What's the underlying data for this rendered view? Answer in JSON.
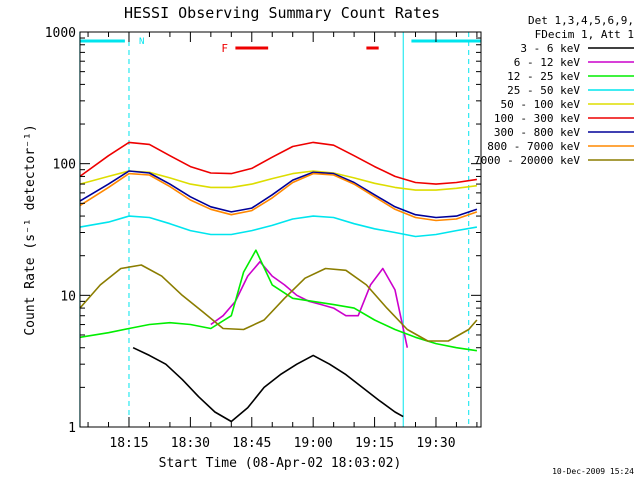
{
  "chart_data": {
    "type": "line",
    "title": "HESSI Observing Summary Count Rates",
    "xlabel": "Start Time (08-Apr-02 18:03:02)",
    "ylabel": "Count Rate (s⁻¹ detector⁻¹)",
    "y_scale": "log",
    "ylim": [
      1,
      1000
    ],
    "y_ticks": [
      {
        "value": 1,
        "label": "1"
      },
      {
        "value": 10,
        "label": "10"
      },
      {
        "value": 100,
        "label": "100"
      },
      {
        "value": 1000,
        "label": "1000"
      }
    ],
    "xlim": [
      "18:03:02",
      "19:41:00"
    ],
    "x_ticks": [
      {
        "value": "18:15",
        "label": "18:15"
      },
      {
        "value": "18:30",
        "label": "18:30"
      },
      {
        "value": "18:45",
        "label": "18:45"
      },
      {
        "value": "19:00",
        "label": "19:00"
      },
      {
        "value": "19:15",
        "label": "19:15"
      },
      {
        "value": "19:30",
        "label": "19:30"
      }
    ],
    "legend_header": [
      "Det 1,3,4,5,6,9,",
      "FDecim 1, Att 1"
    ],
    "legend_position": "right",
    "series": [
      {
        "name": "3 - 6 keV",
        "color": "#000000",
        "x": [
          "18:16",
          "18:20",
          "18:24",
          "18:28",
          "18:32",
          "18:36",
          "18:40",
          "18:44",
          "18:48",
          "18:52",
          "18:56",
          "19:00",
          "19:04",
          "19:08",
          "19:12",
          "19:16",
          "19:20",
          "19:22"
        ],
        "y": [
          4,
          3.5,
          3,
          2.3,
          1.7,
          1.3,
          1.1,
          1.4,
          2,
          2.5,
          3,
          3.5,
          3,
          2.5,
          2,
          1.6,
          1.3,
          1.2
        ]
      },
      {
        "name": "6 - 12 keV",
        "color": "#cc00cc",
        "x": [
          "18:35",
          "18:38",
          "18:41",
          "18:44",
          "18:47",
          "18:50",
          "18:53",
          "18:56",
          "18:59",
          "19:02",
          "19:05",
          "19:08",
          "19:11",
          "19:14",
          "19:17",
          "19:20",
          "19:23"
        ],
        "y": [
          6,
          7,
          9,
          14,
          18,
          14,
          12,
          10,
          9,
          8.5,
          8,
          7,
          7,
          12,
          16,
          11,
          4
        ]
      },
      {
        "name": "12 - 25 keV",
        "color": "#00ee00",
        "x": [
          "18:03",
          "18:10",
          "18:15",
          "18:20",
          "18:25",
          "18:30",
          "18:35",
          "18:40",
          "18:43",
          "18:46",
          "18:50",
          "18:55",
          "19:00",
          "19:05",
          "19:10",
          "19:15",
          "19:20",
          "19:25",
          "19:30",
          "19:35",
          "19:40"
        ],
        "y": [
          4.8,
          5.2,
          5.6,
          6,
          6.2,
          6,
          5.6,
          7,
          15,
          22,
          12,
          9.5,
          9,
          8.5,
          8,
          6.5,
          5.5,
          4.8,
          4.3,
          4,
          3.8
        ]
      },
      {
        "name": "25 - 50 keV",
        "color": "#00e5ee",
        "x": [
          "18:03",
          "18:10",
          "18:15",
          "18:20",
          "18:25",
          "18:30",
          "18:35",
          "18:40",
          "18:45",
          "18:50",
          "18:55",
          "19:00",
          "19:05",
          "19:10",
          "19:15",
          "19:20",
          "19:25",
          "19:30",
          "19:35",
          "19:40"
        ],
        "y": [
          33,
          36,
          40,
          39,
          35,
          31,
          29,
          29,
          31,
          34,
          38,
          40,
          39,
          35,
          32,
          30,
          28,
          29,
          31,
          33
        ]
      },
      {
        "name": "50 - 100 keV",
        "color": "#dddd00",
        "x": [
          "18:03",
          "18:10",
          "18:15",
          "18:20",
          "18:25",
          "18:30",
          "18:35",
          "18:40",
          "18:45",
          "18:50",
          "18:55",
          "19:00",
          "19:05",
          "19:10",
          "19:15",
          "19:20",
          "19:25",
          "19:30",
          "19:35",
          "19:40"
        ],
        "y": [
          70,
          80,
          88,
          86,
          78,
          70,
          66,
          66,
          70,
          77,
          84,
          88,
          85,
          78,
          71,
          66,
          63,
          63,
          65,
          68
        ]
      },
      {
        "name": "100 - 300 keV",
        "color": "#ee0000",
        "x": [
          "18:03",
          "18:10",
          "18:15",
          "18:20",
          "18:25",
          "18:30",
          "18:35",
          "18:40",
          "18:45",
          "18:50",
          "18:55",
          "19:00",
          "19:05",
          "19:10",
          "19:15",
          "19:20",
          "19:25",
          "19:30",
          "19:35",
          "19:40"
        ],
        "y": [
          80,
          115,
          145,
          140,
          115,
          95,
          85,
          84,
          92,
          112,
          135,
          145,
          138,
          115,
          95,
          80,
          72,
          70,
          72,
          76
        ]
      },
      {
        "name": "300 - 800 keV",
        "color": "#000099",
        "x": [
          "18:03",
          "18:10",
          "18:15",
          "18:20",
          "18:25",
          "18:30",
          "18:35",
          "18:40",
          "18:45",
          "18:50",
          "18:55",
          "19:00",
          "19:05",
          "19:10",
          "19:15",
          "19:20",
          "19:25",
          "19:30",
          "19:35",
          "19:40"
        ],
        "y": [
          52,
          70,
          88,
          85,
          70,
          56,
          47,
          43,
          46,
          58,
          75,
          86,
          84,
          72,
          58,
          47,
          41,
          39,
          40,
          45
        ]
      },
      {
        "name": "800 - 7000 keV",
        "color": "#ff8800",
        "x": [
          "18:03",
          "18:10",
          "18:15",
          "18:20",
          "18:25",
          "18:30",
          "18:35",
          "18:40",
          "18:45",
          "18:50",
          "18:55",
          "19:00",
          "19:05",
          "19:10",
          "19:15",
          "19:20",
          "19:25",
          "19:30",
          "19:35",
          "19:40"
        ],
        "y": [
          48,
          66,
          84,
          82,
          67,
          53,
          45,
          41,
          44,
          55,
          72,
          84,
          82,
          70,
          56,
          45,
          39,
          37,
          38,
          43
        ]
      },
      {
        "name": "7000 - 20000 keV",
        "color": "#8b7d00",
        "x": [
          "18:03",
          "18:08",
          "18:13",
          "18:18",
          "18:23",
          "18:28",
          "18:33",
          "18:38",
          "18:43",
          "18:48",
          "18:53",
          "18:58",
          "19:03",
          "19:08",
          "19:13",
          "19:18",
          "19:23",
          "19:28",
          "19:33",
          "19:38",
          "19:40"
        ],
        "y": [
          8,
          12,
          16,
          17,
          14,
          10,
          7.5,
          5.6,
          5.5,
          6.5,
          9.5,
          13.5,
          16,
          15.5,
          12,
          8,
          5.5,
          4.5,
          4.5,
          5.5,
          6.5
        ]
      }
    ],
    "annotations": {
      "night_label": "N",
      "night_color": "#00e5ee",
      "night_bars": [
        [
          "18:03",
          "18:14"
        ],
        [
          "19:24",
          "19:41"
        ]
      ],
      "boundaries_dashed": [
        "18:15",
        "19:38"
      ],
      "boundaries_solid": [
        "18:03",
        "19:22"
      ],
      "flare_label": "F",
      "flare_color": "#ee0000",
      "flare_bars": [
        [
          "18:41",
          "18:49"
        ],
        [
          "19:13",
          "19:16"
        ]
      ]
    },
    "grid": false
  },
  "timestamp": "10-Dec-2009 15:24"
}
